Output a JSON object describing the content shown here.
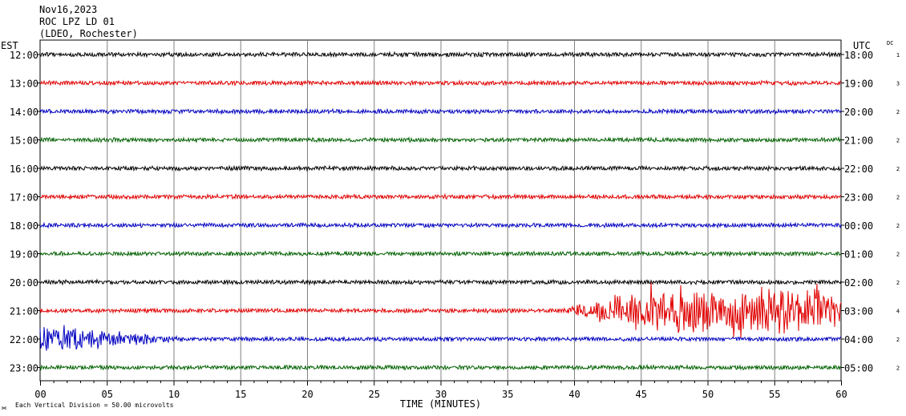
{
  "header": {
    "date": "Nov16,2023",
    "station": "ROC LPZ LD 01",
    "network": "(LDEO, Rochester)"
  },
  "chart_data": {
    "type": "line",
    "title": "",
    "xlabel": "TIME (MINUTES)",
    "left_axis_label": "EST",
    "right_axis_label": "UTC",
    "dc_label": "DC",
    "xlim": [
      0,
      60
    ],
    "x_ticks": [
      "00",
      "05",
      "10",
      "15",
      "20",
      "25",
      "30",
      "35",
      "40",
      "45",
      "50",
      "55",
      "60"
    ],
    "grid": "vertical",
    "scale_note": "Each Vertical Division =    50.00 microvolts",
    "trace_colors": [
      "#000000",
      "#e00000",
      "#0000c0",
      "#006000"
    ],
    "rows": [
      {
        "est": "12:00",
        "utc": "18:00",
        "dc": "1"
      },
      {
        "est": "13:00",
        "utc": "19:00",
        "dc": "3"
      },
      {
        "est": "14:00",
        "utc": "20:00",
        "dc": "2"
      },
      {
        "est": "15:00",
        "utc": "21:00",
        "dc": "2"
      },
      {
        "est": "16:00",
        "utc": "22:00",
        "dc": "2"
      },
      {
        "est": "17:00",
        "utc": "23:00",
        "dc": "2"
      },
      {
        "est": "18:00",
        "utc": "00:00",
        "dc": "2"
      },
      {
        "est": "19:00",
        "utc": "01:00",
        "dc": "2"
      },
      {
        "est": "20:00",
        "utc": "02:00",
        "dc": "2"
      },
      {
        "est": "21:00",
        "utc": "03:00",
        "dc": "4"
      },
      {
        "est": "22:00",
        "utc": "04:00",
        "dc": "2"
      },
      {
        "est": "23:00",
        "utc": "05:00",
        "dc": "2"
      }
    ],
    "events": [
      {
        "row": "21:00",
        "start_min": 39,
        "end_min": 60,
        "peak_amplitude_divisions": 1.0
      },
      {
        "row": "22:00",
        "start_min": 0,
        "end_min": 11,
        "peak_amplitude_divisions": 0.6
      }
    ]
  }
}
